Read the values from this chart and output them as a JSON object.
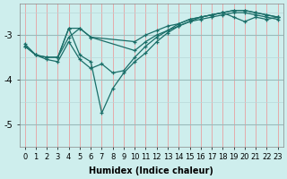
{
  "xlabel": "Humidex (Indice chaleur)",
  "background_color": "#ceeeed",
  "grid_color_v": "#e8a0a0",
  "grid_color_h": "#b8d8d8",
  "line_color": "#1a6e68",
  "xlim": [
    -0.5,
    23.5
  ],
  "ylim": [
    -5.5,
    -2.3
  ],
  "yticks": [
    -5,
    -4,
    -3
  ],
  "xticks": [
    0,
    1,
    2,
    3,
    4,
    5,
    6,
    7,
    8,
    9,
    10,
    11,
    12,
    13,
    14,
    15,
    16,
    17,
    18,
    19,
    20,
    21,
    22,
    23
  ],
  "series": [
    {
      "x": [
        0,
        1,
        2,
        3,
        4,
        5,
        6,
        10,
        11,
        12,
        13,
        14,
        15,
        16,
        17,
        18,
        19,
        20,
        21,
        22,
        23
      ],
      "y": [
        -3.25,
        -3.45,
        -3.5,
        -3.5,
        -2.85,
        -2.85,
        -3.05,
        -3.15,
        -3.0,
        -2.9,
        -2.8,
        -2.75,
        -2.65,
        -2.6,
        -2.55,
        -2.5,
        -2.45,
        -2.45,
        -2.5,
        -2.55,
        -2.6
      ]
    },
    {
      "x": [
        0,
        1,
        2,
        3,
        4,
        5,
        6,
        10,
        11,
        12,
        13,
        14,
        15,
        16,
        17,
        18,
        19,
        20,
        21,
        22,
        23
      ],
      "y": [
        -3.25,
        -3.45,
        -3.5,
        -3.5,
        -3.05,
        -2.85,
        -3.05,
        -3.35,
        -3.15,
        -3.0,
        -2.9,
        -2.8,
        -2.7,
        -2.65,
        -2.6,
        -2.55,
        -2.5,
        -2.5,
        -2.55,
        -2.6,
        -2.65
      ]
    },
    {
      "x": [
        3,
        4,
        5,
        6,
        7,
        8,
        9,
        10,
        11,
        12,
        13,
        14,
        15,
        16,
        17,
        18,
        19,
        20,
        21,
        22,
        23
      ],
      "y": [
        -3.5,
        -2.85,
        -3.45,
        -3.6,
        -4.75,
        -4.2,
        -3.85,
        -3.6,
        -3.4,
        -3.15,
        -2.95,
        -2.8,
        -2.7,
        -2.6,
        -2.55,
        -2.5,
        -2.45,
        -2.45,
        -2.5,
        -2.55,
        -2.6
      ]
    },
    {
      "x": [
        0,
        1,
        2,
        3,
        4,
        5,
        6,
        7,
        8,
        9,
        10,
        11,
        12,
        13,
        14,
        15,
        16,
        17,
        18,
        19,
        20,
        21,
        22,
        23
      ],
      "y": [
        -3.2,
        -3.45,
        -3.55,
        -3.6,
        -3.15,
        -3.55,
        -3.75,
        -3.65,
        -3.85,
        -3.8,
        -3.5,
        -3.25,
        -3.05,
        -2.9,
        -2.75,
        -2.65,
        -2.6,
        -2.55,
        -2.5,
        -2.6,
        -2.7,
        -2.6,
        -2.65,
        -2.6
      ]
    }
  ]
}
